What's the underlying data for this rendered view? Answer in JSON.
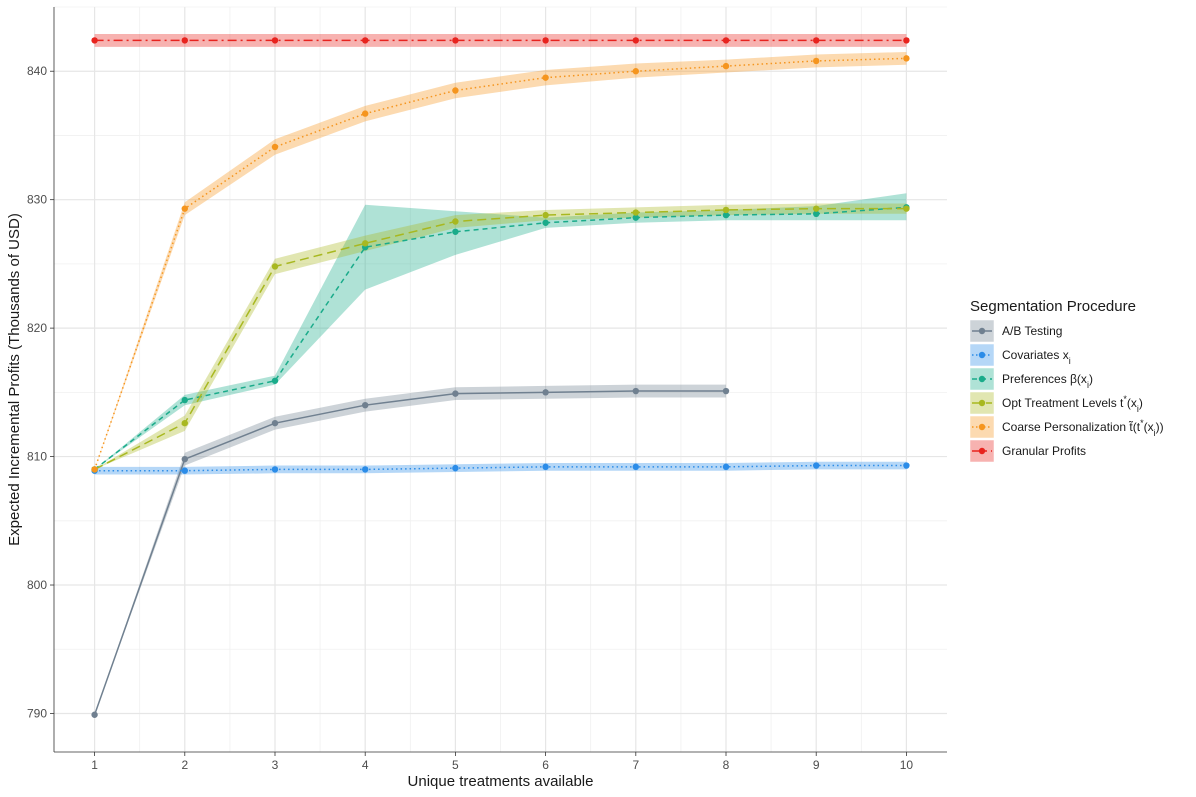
{
  "chart_data": {
    "type": "line",
    "xlabel": "Unique treatments available",
    "ylabel": "Expected Incremental Profits (Thousands of USD)",
    "xlim": [
      0.55,
      10.45
    ],
    "ylim": [
      787.0,
      845.0
    ],
    "x_ticks": [
      1,
      2,
      3,
      4,
      5,
      6,
      7,
      8,
      9,
      10
    ],
    "y_ticks": [
      790,
      800,
      810,
      820,
      830,
      840
    ],
    "grid": true,
    "legend_position": "right",
    "legend_title": "Segmentation Procedure",
    "series": [
      {
        "name": "A/B Testing",
        "color": "#708090",
        "line_style": "solid",
        "x": [
          1,
          2,
          3,
          4,
          5,
          6,
          7,
          8
        ],
        "y": [
          789.9,
          809.8,
          812.6,
          814.0,
          814.9,
          815.0,
          815.1,
          815.1
        ],
        "lower": [
          789.9,
          809.3,
          812.1,
          813.5,
          814.4,
          814.5,
          814.6,
          814.6
        ],
        "upper": [
          789.9,
          810.3,
          813.1,
          814.5,
          815.4,
          815.5,
          815.6,
          815.6
        ]
      },
      {
        "name": "Covariates x_i",
        "color": "#2b8ce8",
        "line_style": "dotted",
        "x": [
          1,
          2,
          3,
          4,
          5,
          6,
          7,
          8,
          9,
          10
        ],
        "y": [
          808.9,
          808.9,
          809.0,
          809.0,
          809.1,
          809.2,
          809.2,
          809.2,
          809.3,
          809.3
        ],
        "lower": [
          808.6,
          808.6,
          808.7,
          808.7,
          808.8,
          808.9,
          808.9,
          808.9,
          809.0,
          809.0
        ],
        "upper": [
          809.2,
          809.2,
          809.3,
          809.3,
          809.4,
          809.5,
          809.5,
          809.5,
          809.6,
          809.6
        ]
      },
      {
        "name": "Preferences β(x_i)",
        "color": "#1aab8a",
        "line_style": "dashed",
        "x": [
          1,
          2,
          3,
          4,
          5,
          6,
          7,
          8,
          9,
          10
        ],
        "y": [
          809.0,
          814.4,
          815.9,
          826.3,
          827.5,
          828.2,
          828.6,
          828.8,
          828.9,
          829.4
        ],
        "lower": [
          809.0,
          814.0,
          815.6,
          823.0,
          825.7,
          827.8,
          828.2,
          828.4,
          828.4,
          828.4
        ],
        "upper": [
          809.0,
          814.8,
          816.3,
          829.6,
          829.1,
          828.6,
          829.0,
          829.2,
          829.5,
          830.5
        ]
      },
      {
        "name": "Opt Treatment Levels t*(x_i)",
        "color": "#a8b820",
        "line_style": "longdash",
        "x": [
          1,
          2,
          3,
          4,
          5,
          6,
          7,
          8,
          9,
          10
        ],
        "y": [
          809.0,
          812.6,
          824.8,
          826.6,
          828.3,
          828.8,
          829.0,
          829.2,
          829.3,
          829.3
        ],
        "lower": [
          809.0,
          812.0,
          824.2,
          826.0,
          827.8,
          828.4,
          828.6,
          828.8,
          828.9,
          828.9
        ],
        "upper": [
          809.0,
          813.2,
          825.4,
          827.2,
          828.8,
          829.2,
          829.4,
          829.6,
          829.7,
          829.7
        ]
      },
      {
        "name": "Coarse Personalization t̃(t*(x_i))",
        "color": "#f5951e",
        "line_style": "dotted",
        "x": [
          1,
          2,
          3,
          4,
          5,
          6,
          7,
          8,
          9,
          10
        ],
        "y": [
          809.0,
          829.3,
          834.1,
          836.7,
          838.5,
          839.5,
          840.0,
          840.4,
          840.8,
          841.0
        ],
        "lower": [
          809.0,
          828.8,
          833.5,
          836.1,
          837.9,
          838.9,
          839.5,
          839.9,
          840.3,
          840.5
        ],
        "upper": [
          809.0,
          829.8,
          834.7,
          837.3,
          839.1,
          840.1,
          840.6,
          840.9,
          841.3,
          841.5
        ]
      },
      {
        "name": "Granular Profits",
        "color": "#e8231e",
        "line_style": "dotdash",
        "x": [
          1,
          2,
          3,
          4,
          5,
          6,
          7,
          8,
          9,
          10
        ],
        "y": [
          842.4,
          842.4,
          842.4,
          842.4,
          842.4,
          842.4,
          842.4,
          842.4,
          842.4,
          842.4
        ],
        "lower": [
          841.9,
          841.9,
          841.9,
          841.9,
          841.9,
          841.9,
          841.9,
          841.9,
          841.9,
          841.9
        ],
        "upper": [
          842.9,
          842.9,
          842.9,
          842.9,
          842.9,
          842.9,
          842.9,
          842.9,
          842.9,
          842.9
        ]
      }
    ]
  }
}
